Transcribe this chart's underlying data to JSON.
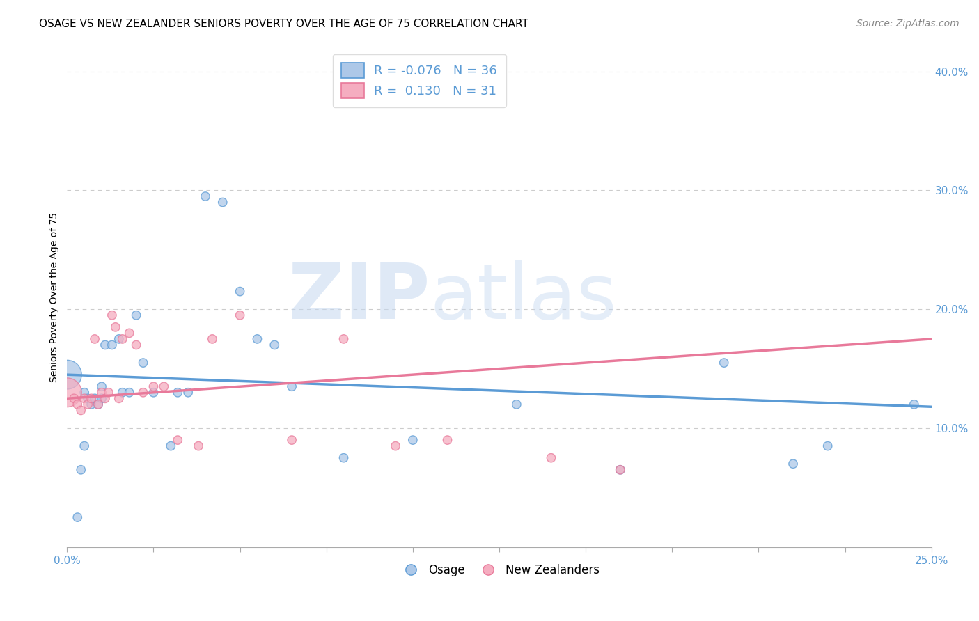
{
  "title": "OSAGE VS NEW ZEALANDER SENIORS POVERTY OVER THE AGE OF 75 CORRELATION CHART",
  "source": "Source: ZipAtlas.com",
  "ylabel": "Seniors Poverty Over the Age of 75",
  "xlim": [
    0.0,
    0.25
  ],
  "ylim": [
    0.0,
    0.42
  ],
  "yticks_right": [
    0.1,
    0.2,
    0.3,
    0.4
  ],
  "ytick_labels_right": [
    "10.0%",
    "20.0%",
    "30.0%",
    "40.0%"
  ],
  "legend_R_blue": "-0.076",
  "legend_N_blue": "36",
  "legend_R_pink": "0.130",
  "legend_N_pink": "31",
  "osage_color": "#adc8e8",
  "nz_color": "#f5adc0",
  "blue_line_color": "#5b9bd5",
  "pink_line_color": "#e8799a",
  "blue_scatter_edge": "#5b9bd5",
  "pink_scatter_edge": "#e8799a",
  "watermark_zip_color": "#c5d8f0",
  "watermark_atlas_color": "#c5d8f0",
  "background_color": "#ffffff",
  "grid_color": "#cccccc",
  "osage_x": [
    0.0,
    0.003,
    0.004,
    0.005,
    0.005,
    0.006,
    0.007,
    0.008,
    0.009,
    0.01,
    0.01,
    0.011,
    0.013,
    0.015,
    0.016,
    0.018,
    0.02,
    0.022,
    0.025,
    0.03,
    0.032,
    0.035,
    0.04,
    0.045,
    0.05,
    0.055,
    0.06,
    0.065,
    0.08,
    0.1,
    0.13,
    0.16,
    0.19,
    0.21,
    0.22,
    0.245
  ],
  "osage_y": [
    0.145,
    0.025,
    0.065,
    0.13,
    0.085,
    0.125,
    0.12,
    0.125,
    0.12,
    0.125,
    0.135,
    0.17,
    0.17,
    0.175,
    0.13,
    0.13,
    0.195,
    0.155,
    0.13,
    0.085,
    0.13,
    0.13,
    0.295,
    0.29,
    0.215,
    0.175,
    0.17,
    0.135,
    0.075,
    0.09,
    0.12,
    0.065,
    0.155,
    0.07,
    0.085,
    0.12
  ],
  "osage_sizes": [
    900,
    80,
    80,
    80,
    80,
    80,
    80,
    80,
    80,
    80,
    80,
    80,
    80,
    80,
    80,
    80,
    80,
    80,
    80,
    80,
    80,
    80,
    80,
    80,
    80,
    80,
    80,
    80,
    80,
    80,
    80,
    80,
    80,
    80,
    80,
    80
  ],
  "nz_x": [
    0.0,
    0.002,
    0.003,
    0.004,
    0.005,
    0.006,
    0.007,
    0.008,
    0.009,
    0.01,
    0.011,
    0.012,
    0.013,
    0.014,
    0.015,
    0.016,
    0.018,
    0.02,
    0.022,
    0.025,
    0.028,
    0.032,
    0.038,
    0.042,
    0.05,
    0.065,
    0.08,
    0.095,
    0.11,
    0.14,
    0.16
  ],
  "nz_y": [
    0.13,
    0.125,
    0.12,
    0.115,
    0.125,
    0.12,
    0.125,
    0.175,
    0.12,
    0.13,
    0.125,
    0.13,
    0.195,
    0.185,
    0.125,
    0.175,
    0.18,
    0.17,
    0.13,
    0.135,
    0.135,
    0.09,
    0.085,
    0.175,
    0.195,
    0.09,
    0.175,
    0.085,
    0.09,
    0.075,
    0.065
  ],
  "nz_sizes": [
    900,
    80,
    80,
    80,
    80,
    80,
    80,
    80,
    80,
    80,
    80,
    80,
    80,
    80,
    80,
    80,
    80,
    80,
    80,
    80,
    80,
    80,
    80,
    80,
    80,
    80,
    80,
    80,
    80,
    80,
    80
  ],
  "blue_trend_x0": 0.0,
  "blue_trend_x1": 0.25,
  "blue_trend_y0": 0.145,
  "blue_trend_y1": 0.118,
  "pink_trend_x0": 0.0,
  "pink_trend_x1": 0.25,
  "pink_trend_y0": 0.125,
  "pink_trend_y1": 0.175,
  "title_fontsize": 11,
  "axis_label_fontsize": 10,
  "tick_fontsize": 11,
  "source_fontsize": 10
}
